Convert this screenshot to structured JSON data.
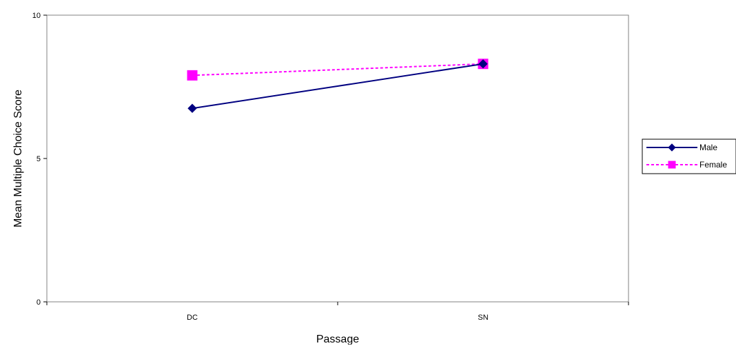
{
  "chart_data": {
    "type": "line",
    "categories": [
      "DC",
      "SN"
    ],
    "series": [
      {
        "name": "Male",
        "values": [
          6.75,
          8.3
        ],
        "color": "#000080",
        "line_style": "solid",
        "marker": "diamond"
      },
      {
        "name": "Female",
        "values": [
          7.9,
          8.3
        ],
        "color": "#FF00FF",
        "line_style": "dashed",
        "marker": "square"
      }
    ],
    "title": "",
    "xlabel": "Passage",
    "ylabel": "Mean Multiple Choice Score",
    "ylim": [
      0,
      10
    ],
    "yticks": [
      "0",
      "5",
      "10"
    ],
    "grid": false,
    "legend": "right"
  }
}
